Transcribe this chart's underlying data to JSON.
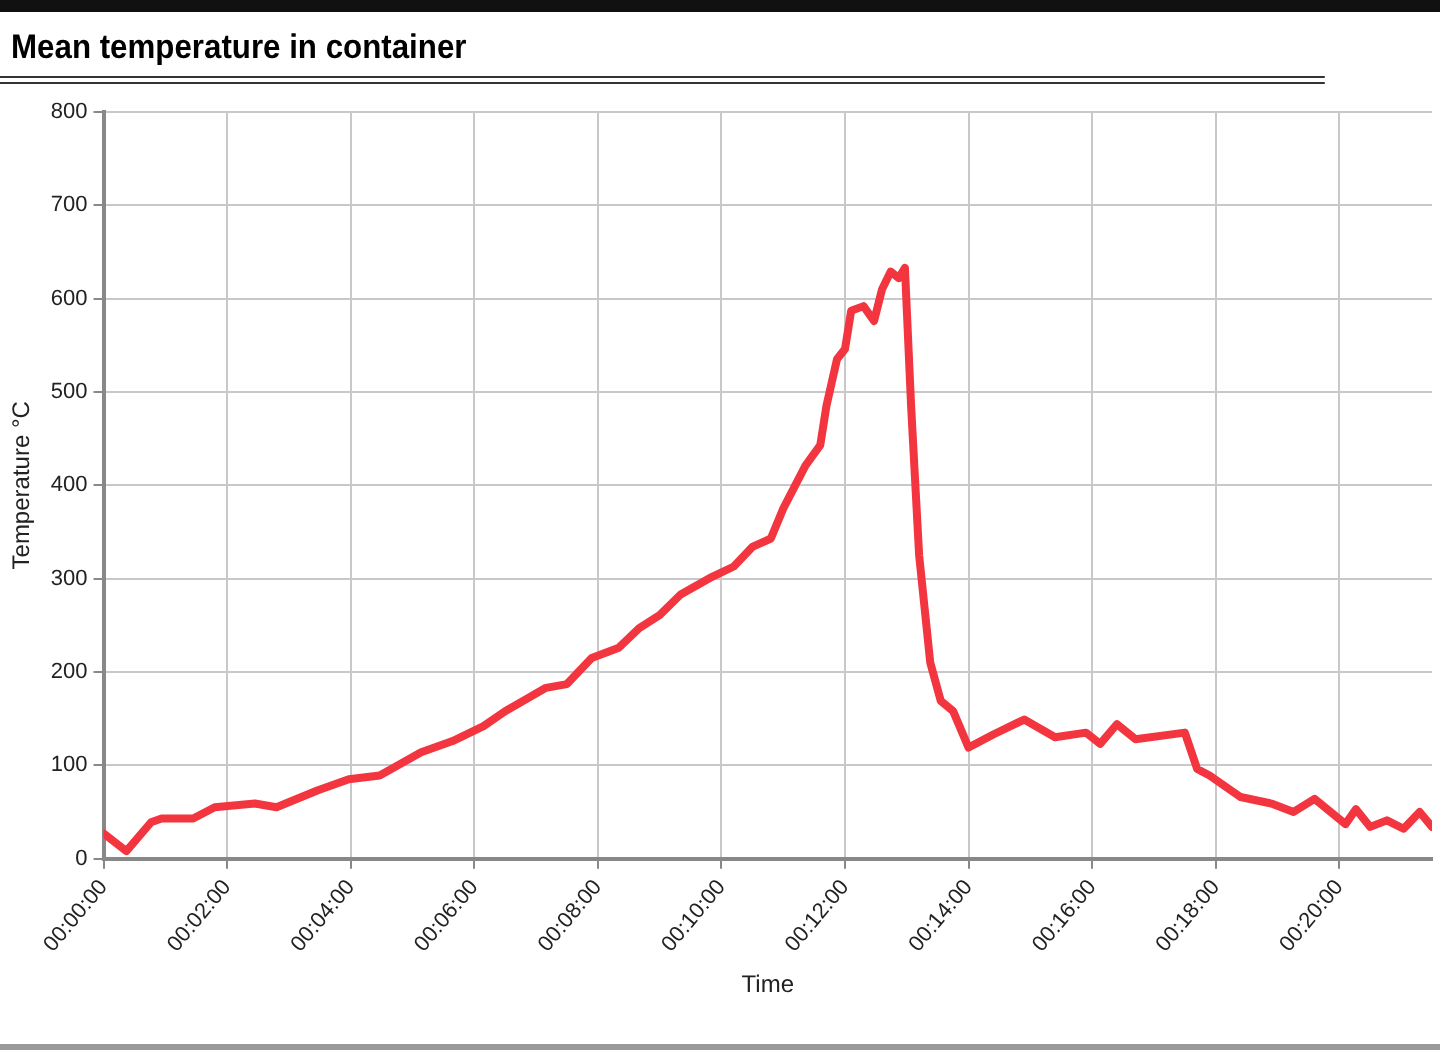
{
  "chart_data": {
    "type": "line",
    "title": "Mean temperature in container",
    "xlabel": "Time",
    "ylabel": "Temperature °C",
    "xlim": [
      0,
      21.5
    ],
    "xticks": [
      {
        "value": 0,
        "label": "00:00:00"
      },
      {
        "value": 2,
        "label": "00:02:00"
      },
      {
        "value": 4,
        "label": "00:04:00"
      },
      {
        "value": 6,
        "label": "00:06:00"
      },
      {
        "value": 8,
        "label": "00:08:00"
      },
      {
        "value": 10,
        "label": "00:10:00"
      },
      {
        "value": 12,
        "label": "00:12:00"
      },
      {
        "value": 14,
        "label": "00:14:00"
      },
      {
        "value": 16,
        "label": "00:16:00"
      },
      {
        "value": 18,
        "label": "00:18:00"
      },
      {
        "value": 20,
        "label": "00:20:00"
      }
    ],
    "ylim": [
      0,
      800
    ],
    "yticks": [
      0,
      100,
      200,
      300,
      400,
      500,
      600,
      700,
      800
    ],
    "grid": true,
    "legend": false,
    "marker": "none",
    "line_style": "solid",
    "x": [
      0,
      0.37,
      0.77,
      0.94,
      1.45,
      1.8,
      2.45,
      2.8,
      3.46,
      3.97,
      4.47,
      5.14,
      5.65,
      6.15,
      6.5,
      7.16,
      7.5,
      7.9,
      8.34,
      8.67,
      9.0,
      9.34,
      9.85,
      10.2,
      10.5,
      10.8,
      11.0,
      11.36,
      11.6,
      11.7,
      11.87,
      12.0,
      12.1,
      12.3,
      12.47,
      12.6,
      12.74,
      12.87,
      12.97,
      13.07,
      13.2,
      13.38,
      13.55,
      13.75,
      14.0,
      14.4,
      14.9,
      15.4,
      15.9,
      16.13,
      16.4,
      16.7,
      17.5,
      17.7,
      17.9,
      18.4,
      18.9,
      19.26,
      19.6,
      20.1,
      20.27,
      20.5,
      20.77,
      21.04,
      21.3,
      21.5
    ],
    "series": [
      {
        "color": "#f2353f",
        "values": [
          27,
          8,
          39,
          43,
          43,
          55,
          59,
          55,
          73,
          85,
          89,
          114,
          126,
          142,
          158,
          183,
          187,
          215,
          226,
          247,
          261,
          283,
          302,
          313,
          334,
          343,
          375,
          421,
          443,
          485,
          535,
          546,
          587,
          592,
          576,
          610,
          629,
          622,
          633,
          485,
          325,
          210,
          169,
          158,
          119,
          133,
          149,
          130,
          135,
          123,
          144,
          128,
          135,
          96,
          89,
          66,
          59,
          50,
          64,
          37,
          53,
          34,
          41,
          32,
          50,
          34
        ]
      }
    ]
  }
}
